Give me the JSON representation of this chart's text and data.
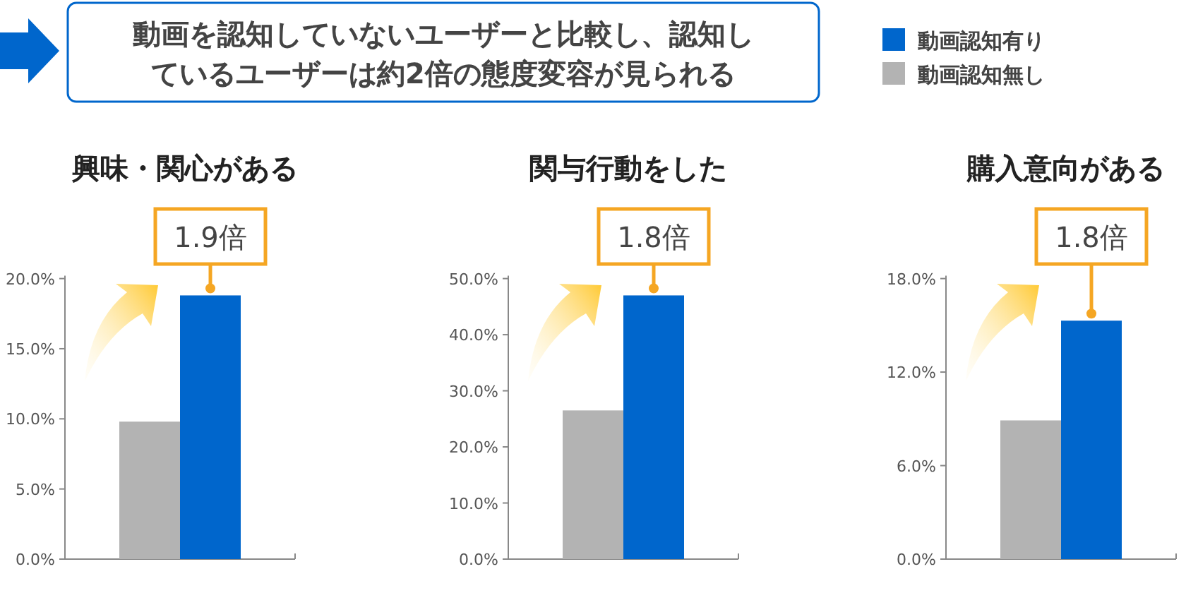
{
  "chart_data": [
    {
      "type": "other",
      "title": "動画を認知していないユーザーと比較し、認知しているユーザーは約2倍の態度変容が見られる"
    },
    {
      "type": "bar",
      "title": "興味・関心がある",
      "categories": [
        null
      ],
      "series": [
        {
          "color": "#b3b3b3",
          "values": [
            9.8
          ]
        },
        {
          "color": "#0066cc",
          "values": [
            18.8
          ]
        }
      ],
      "ylim": [
        0,
        20
      ],
      "yticks": [
        {
          "value": 0,
          "label": "0.0%"
        },
        {
          "value": 5,
          "label": "5.0%"
        },
        {
          "value": 10,
          "label": "10.0%"
        },
        {
          "value": 15,
          "label": "15.0%"
        },
        {
          "value": 20,
          "label": "20.0%"
        }
      ],
      "annotations": [
        {
          "text": "1.9倍",
          "y": 18.8
        }
      ]
    },
    {
      "type": "bar",
      "title": "関与行動をした",
      "categories": [
        null
      ],
      "series": [
        {
          "color": "#b3b3b3",
          "values": [
            26.5
          ]
        },
        {
          "color": "#0066cc",
          "values": [
            47.0
          ]
        }
      ],
      "ylim": [
        0,
        50
      ],
      "yticks": [
        {
          "value": 0,
          "label": "0.0%"
        },
        {
          "value": 10,
          "label": "10.0%"
        },
        {
          "value": 20,
          "label": "20.0%"
        },
        {
          "value": 30,
          "label": "30.0%"
        },
        {
          "value": 40,
          "label": "40.0%"
        },
        {
          "value": 50,
          "label": "50.0%"
        }
      ],
      "annotations": [
        {
          "text": "1.8倍",
          "y": 47.0
        }
      ]
    },
    {
      "type": "bar",
      "title": "購入意向がある",
      "categories": [
        null
      ],
      "series": [
        {
          "name": "動画認知無し",
          "color": "#b3b3b3",
          "values": [
            8.9
          ]
        },
        {
          "name": "動画認知有り",
          "color": "#0066cc",
          "values": [
            15.3
          ]
        }
      ],
      "ylim": [
        0,
        18
      ],
      "yticks": [
        {
          "value": 0,
          "label": "0.0%"
        },
        {
          "value": 6,
          "label": "6.0%"
        },
        {
          "value": 12,
          "label": "12.0%"
        },
        {
          "value": 18,
          "label": "18.0%"
        }
      ],
      "annotations": [
        {
          "text": "1.8倍",
          "y": 15.3
        }
      ],
      "legend": "top left"
    }
  ]
}
